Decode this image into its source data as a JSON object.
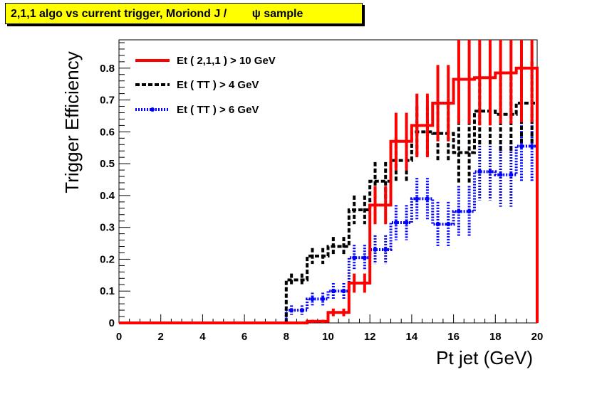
{
  "title": "2,1,1 algo vs current trigger, Moriond J /        ψ sample",
  "chart_data": {
    "type": "line",
    "xlabel": "Pt jet (GeV)",
    "ylabel": "Trigger Efficiency",
    "xlim": [
      0,
      20
    ],
    "ylim": [
      0,
      0.8889
    ],
    "x_ticks": [
      "0",
      "2",
      "4",
      "6",
      "8",
      "10",
      "12",
      "14",
      "16",
      "18",
      "20"
    ],
    "y_ticks": [
      "0",
      "0.1",
      "0.2",
      "0.3",
      "0.4",
      "0.5",
      "0.6",
      "0.7",
      "0.8"
    ],
    "legend_position": "top-left",
    "series": [
      {
        "name": "Et ( 2,1,1 ) > 10 GeV",
        "color": "#ff0000",
        "style": "solid",
        "bins_low": [
          0,
          1,
          2,
          3,
          4,
          5,
          6,
          7,
          8,
          9,
          9.5,
          10,
          10.5,
          11,
          11.5,
          12,
          12.5,
          13,
          13.5,
          14,
          14.5,
          15,
          15.5,
          16,
          16.5,
          17,
          17.5,
          18,
          18.5,
          19,
          19.5
        ],
        "bins_high": [
          1,
          2,
          3,
          4,
          5,
          6,
          7,
          8,
          9,
          9.5,
          10,
          10.5,
          11,
          11.5,
          12,
          12.5,
          13,
          13.5,
          14,
          14.5,
          15,
          15.5,
          16,
          16.5,
          17,
          17.5,
          18,
          18.5,
          19,
          19.5,
          20
        ],
        "values": [
          0,
          0,
          0,
          0,
          0,
          0,
          0,
          0,
          0,
          0.005,
          0.005,
          0.033,
          0.033,
          0.125,
          0.125,
          0.37,
          0.37,
          0.57,
          0.57,
          0.62,
          0.62,
          0.69,
          0.69,
          0.765,
          0.765,
          0.77,
          0.77,
          0.785,
          0.785,
          0.8,
          0.8
        ],
        "errors": [
          0,
          0,
          0,
          0,
          0,
          0,
          0,
          0,
          0,
          0.005,
          0.005,
          0.012,
          0.012,
          0.03,
          0.03,
          0.06,
          0.06,
          0.09,
          0.09,
          0.1,
          0.1,
          0.12,
          0.12,
          0.14,
          0.14,
          0.15,
          0.15,
          0.16,
          0.16,
          0.17,
          0.17
        ]
      },
      {
        "name": "Et ( TT ) > 4 GeV",
        "color": "#000000",
        "style": "dashed",
        "bins_low": [
          0,
          1,
          2,
          3,
          4,
          5,
          6,
          7,
          8,
          8.5,
          9,
          9.5,
          10,
          10.5,
          11,
          11.5,
          12,
          12.5,
          13,
          13.5,
          14,
          14.5,
          15,
          15.5,
          16,
          16.5,
          17,
          17.5,
          18,
          18.5,
          19,
          19.5
        ],
        "bins_high": [
          1,
          2,
          3,
          4,
          5,
          6,
          7,
          8,
          8.5,
          9,
          9.5,
          10,
          10.5,
          11,
          11.5,
          12,
          12.5,
          13,
          13.5,
          14,
          14.5,
          15,
          15.5,
          16,
          16.5,
          17,
          17.5,
          18,
          18.5,
          19,
          19.5,
          20
        ],
        "values": [
          0,
          0,
          0,
          0,
          0,
          0,
          0,
          0,
          0.135,
          0.135,
          0.21,
          0.21,
          0.24,
          0.24,
          0.355,
          0.355,
          0.445,
          0.445,
          0.51,
          0.51,
          0.6,
          0.6,
          0.595,
          0.595,
          0.535,
          0.535,
          0.665,
          0.665,
          0.655,
          0.655,
          0.69,
          0.69
        ],
        "errors": [
          0,
          0,
          0,
          0,
          0,
          0,
          0,
          0,
          0.02,
          0.02,
          0.025,
          0.025,
          0.03,
          0.03,
          0.045,
          0.045,
          0.06,
          0.06,
          0.07,
          0.07,
          0.08,
          0.08,
          0.09,
          0.09,
          0.1,
          0.1,
          0.11,
          0.11,
          0.12,
          0.12,
          0.13,
          0.13
        ]
      },
      {
        "name": "Et ( TT ) > 6 GeV",
        "color": "#0000ff",
        "style": "dotted",
        "bins_low": [
          0,
          1,
          2,
          3,
          4,
          5,
          6,
          7,
          8,
          8.5,
          9,
          9.5,
          10,
          10.5,
          11,
          11.5,
          12,
          12.5,
          13,
          13.5,
          14,
          14.5,
          15,
          15.5,
          16,
          16.5,
          17,
          17.5,
          18,
          18.5,
          19,
          19.5
        ],
        "bins_high": [
          1,
          2,
          3,
          4,
          5,
          6,
          7,
          8,
          8.5,
          9,
          9.5,
          10,
          10.5,
          11,
          11.5,
          12,
          12.5,
          13,
          13.5,
          14,
          14.5,
          15,
          15.5,
          16,
          16.5,
          17,
          17.5,
          18,
          18.5,
          19,
          19.5,
          20
        ],
        "values": [
          0,
          0,
          0,
          0,
          0,
          0,
          0,
          0,
          0.04,
          0.04,
          0.075,
          0.075,
          0.1,
          0.1,
          0.205,
          0.205,
          0.23,
          0.23,
          0.315,
          0.315,
          0.39,
          0.39,
          0.31,
          0.31,
          0.35,
          0.35,
          0.475,
          0.475,
          0.465,
          0.465,
          0.555,
          0.555
        ],
        "errors": [
          0,
          0,
          0,
          0,
          0,
          0,
          0,
          0,
          0.015,
          0.015,
          0.02,
          0.02,
          0.025,
          0.025,
          0.04,
          0.04,
          0.045,
          0.045,
          0.055,
          0.055,
          0.065,
          0.065,
          0.07,
          0.07,
          0.08,
          0.08,
          0.09,
          0.09,
          0.1,
          0.1,
          0.11,
          0.11
        ]
      }
    ]
  }
}
